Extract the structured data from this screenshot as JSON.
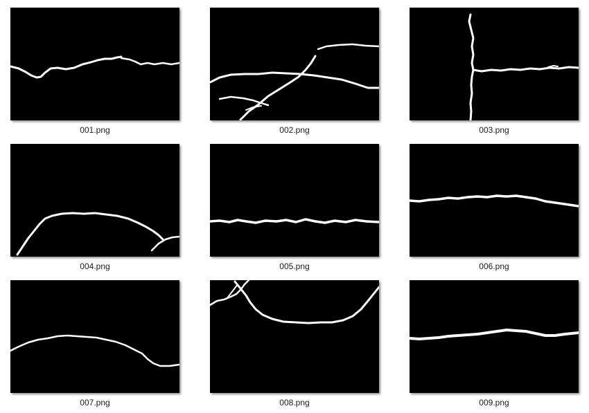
{
  "files": [
    {
      "name": "001.png"
    },
    {
      "name": "002.png"
    },
    {
      "name": "003.png"
    },
    {
      "name": "004.png"
    },
    {
      "name": "005.png"
    },
    {
      "name": "006.png"
    },
    {
      "name": "007.png"
    },
    {
      "name": "008.png"
    },
    {
      "name": "009.png"
    }
  ]
}
